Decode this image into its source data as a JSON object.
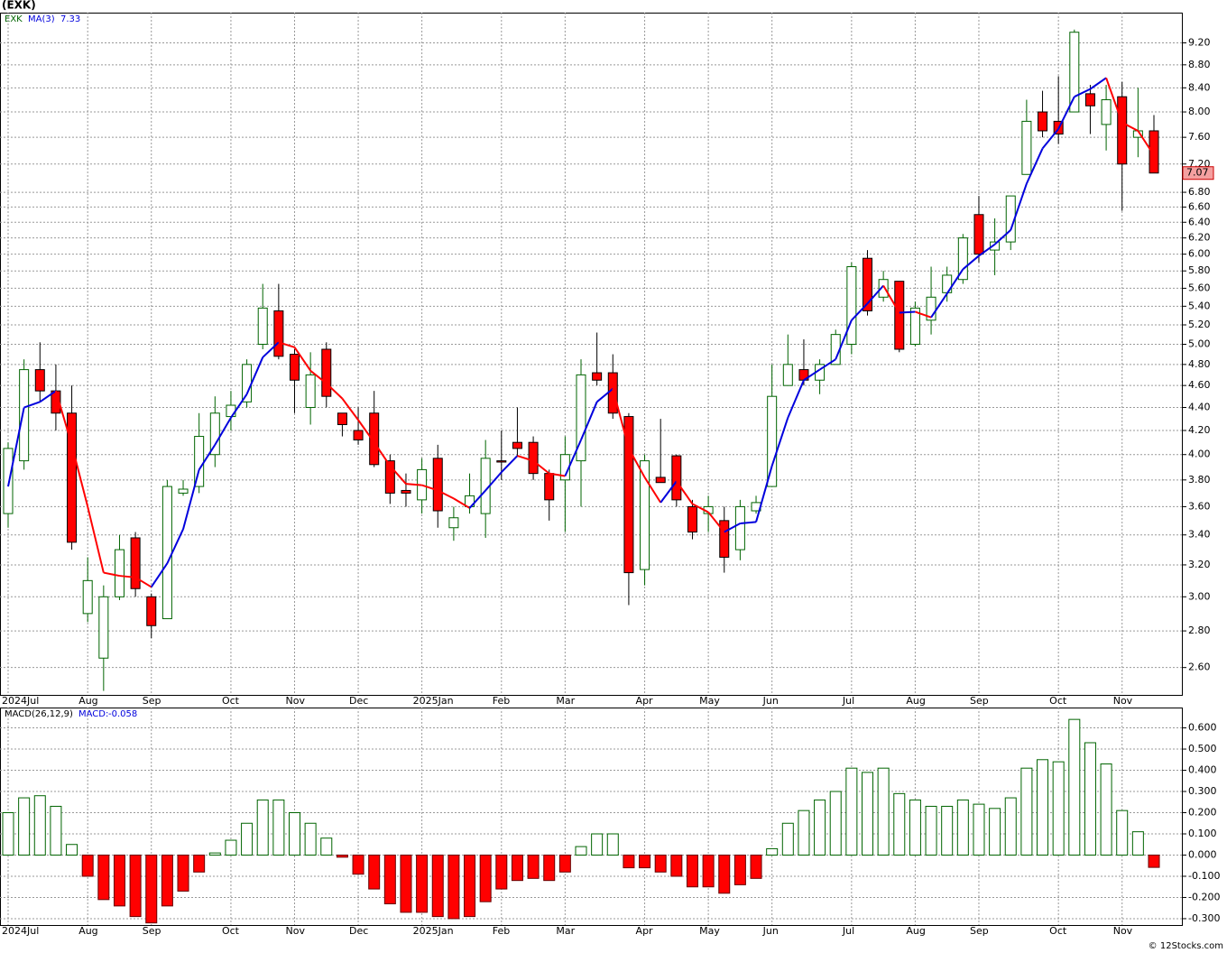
{
  "chart_data": [
    {
      "type": "candlestick",
      "title": "(EXK)",
      "legend_symbol": "EXK",
      "log_scale": true,
      "grid": true,
      "up_color": "#006400",
      "down_color": "#ff0000",
      "categories": [
        "2024Jul",
        null,
        null,
        null,
        null,
        "Aug",
        null,
        null,
        null,
        "Sep",
        null,
        null,
        null,
        null,
        "Oct",
        null,
        null,
        null,
        "Nov",
        null,
        null,
        null,
        "Dec",
        null,
        null,
        null,
        "2025Jan",
        null,
        null,
        null,
        null,
        "Feb",
        null,
        null,
        null,
        "Mar",
        null,
        null,
        null,
        null,
        "Apr",
        null,
        null,
        null,
        "May",
        null,
        null,
        null,
        "Jun",
        null,
        null,
        null,
        null,
        "Jul",
        null,
        null,
        null,
        "Aug",
        null,
        null,
        null,
        "Sep",
        null,
        null,
        null,
        null,
        "Oct",
        null,
        null,
        null,
        "Nov",
        null,
        null
      ],
      "open": [
        3.55,
        3.95,
        4.75,
        4.55,
        4.35,
        2.9,
        2.65,
        3.0,
        3.38,
        3.0,
        2.87,
        3.7,
        3.75,
        4.0,
        4.32,
        4.45,
        5.0,
        5.35,
        4.9,
        4.4,
        4.95,
        4.35,
        4.2,
        4.35,
        3.95,
        3.72,
        3.65,
        3.97,
        3.45,
        3.6,
        3.55,
        3.95,
        4.1,
        4.1,
        3.85,
        3.8,
        3.95,
        4.72,
        4.72,
        4.32,
        3.17,
        3.82,
        3.99,
        3.6,
        3.55,
        3.5,
        3.3,
        3.57,
        3.75,
        4.6,
        4.75,
        4.65,
        4.8,
        5.0,
        5.95,
        5.5,
        5.68,
        5.0,
        5.25,
        5.55,
        5.7,
        6.5,
        6.05,
        6.15,
        7.05,
        8.0,
        7.85,
        8.0,
        8.3,
        7.8,
        8.25,
        7.6,
        7.7
      ],
      "high": [
        4.1,
        4.85,
        5.02,
        4.8,
        4.6,
        3.25,
        3.07,
        3.4,
        3.42,
        3.02,
        3.8,
        3.8,
        4.35,
        4.5,
        4.55,
        4.85,
        5.65,
        5.65,
        4.95,
        4.92,
        5.02,
        4.35,
        4.4,
        4.55,
        4.0,
        3.85,
        3.97,
        4.08,
        3.6,
        3.85,
        4.12,
        4.2,
        4.4,
        4.15,
        3.88,
        4.15,
        4.85,
        5.12,
        4.9,
        4.35,
        4.0,
        4.3,
        4.0,
        3.65,
        3.68,
        3.6,
        3.65,
        3.68,
        4.8,
        5.1,
        5.05,
        4.85,
        5.15,
        5.9,
        6.05,
        5.8,
        5.68,
        5.45,
        5.85,
        5.85,
        6.25,
        6.75,
        6.45,
        6.75,
        8.2,
        8.35,
        8.6,
        9.45,
        8.45,
        8.45,
        8.5,
        8.4,
        7.95
      ],
      "low": [
        3.45,
        3.88,
        4.45,
        4.2,
        3.3,
        2.85,
        2.48,
        2.98,
        3.0,
        2.76,
        2.87,
        3.68,
        3.7,
        3.9,
        4.2,
        4.4,
        4.95,
        4.85,
        4.35,
        4.25,
        4.4,
        4.15,
        4.08,
        3.9,
        3.62,
        3.6,
        3.55,
        3.45,
        3.36,
        3.55,
        3.38,
        3.8,
        3.98,
        3.8,
        3.5,
        3.42,
        3.6,
        4.6,
        4.3,
        2.95,
        3.07,
        3.78,
        3.6,
        3.37,
        3.42,
        3.15,
        3.23,
        3.55,
        3.75,
        4.6,
        4.6,
        4.52,
        4.8,
        4.9,
        5.3,
        5.45,
        4.92,
        4.98,
        5.1,
        5.45,
        5.65,
        5.9,
        5.75,
        6.05,
        7.05,
        7.6,
        7.5,
        8.0,
        7.65,
        7.4,
        6.55,
        7.3,
        7.07
      ],
      "close": [
        4.05,
        4.75,
        4.55,
        4.35,
        3.35,
        3.1,
        3.0,
        3.3,
        3.05,
        2.83,
        3.75,
        3.73,
        4.15,
        4.35,
        4.42,
        4.8,
        5.38,
        4.88,
        4.65,
        4.7,
        4.5,
        4.25,
        4.12,
        3.92,
        3.7,
        3.7,
        3.88,
        3.57,
        3.52,
        3.68,
        3.97,
        3.94,
        4.05,
        3.85,
        3.65,
        4.0,
        4.7,
        4.65,
        4.35,
        3.15,
        3.95,
        3.78,
        3.65,
        3.42,
        3.6,
        3.25,
        3.6,
        3.63,
        4.5,
        4.8,
        4.65,
        4.8,
        5.1,
        5.85,
        5.35,
        5.7,
        4.95,
        5.38,
        5.5,
        5.75,
        6.2,
        6.0,
        6.15,
        6.75,
        7.85,
        7.7,
        7.65,
        9.4,
        8.1,
        8.2,
        7.2,
        7.7,
        7.07
      ],
      "series": [
        {
          "name": "MA(3)",
          "color": "#0000dd",
          "down_color": "#ff0000",
          "values": [
            3.75,
            4.4,
            4.45,
            4.55,
            4.08,
            3.6,
            3.15,
            3.13,
            3.12,
            3.06,
            3.21,
            3.44,
            3.88,
            4.08,
            4.31,
            4.52,
            4.87,
            5.02,
            4.97,
            4.74,
            4.62,
            4.48,
            4.29,
            4.1,
            3.91,
            3.77,
            3.76,
            3.72,
            3.66,
            3.59,
            3.72,
            3.86,
            3.99,
            3.95,
            3.85,
            3.83,
            4.12,
            4.45,
            4.57,
            4.05,
            3.82,
            3.63,
            3.79,
            3.62,
            3.56,
            3.42,
            3.48,
            3.49,
            3.91,
            4.31,
            4.65,
            4.75,
            4.85,
            5.25,
            5.43,
            5.63,
            5.33,
            5.34,
            5.28,
            5.54,
            5.82,
            5.98,
            6.12,
            6.3,
            6.92,
            7.43,
            7.73,
            8.25,
            8.38,
            8.57,
            7.83,
            7.7,
            7.33
          ]
        }
      ],
      "ylim": [
        2.46,
        9.78
      ],
      "yticks": [
        {
          "value": 2.6,
          "label": "2.60"
        },
        {
          "value": 2.8,
          "label": "2.80"
        },
        {
          "value": 3.0,
          "label": "3.00"
        },
        {
          "value": 3.2,
          "label": "3.20"
        },
        {
          "value": 3.4,
          "label": "3.40"
        },
        {
          "value": 3.6,
          "label": "3.60"
        },
        {
          "value": 3.8,
          "label": "3.80"
        },
        {
          "value": 4.0,
          "label": "4.00"
        },
        {
          "value": 4.2,
          "label": "4.20"
        },
        {
          "value": 4.4,
          "label": "4.40"
        },
        {
          "value": 4.6,
          "label": "4.60"
        },
        {
          "value": 4.8,
          "label": "4.80"
        },
        {
          "value": 5.0,
          "label": "5.00"
        },
        {
          "value": 5.2,
          "label": "5.20"
        },
        {
          "value": 5.4,
          "label": "5.40"
        },
        {
          "value": 5.6,
          "label": "5.60"
        },
        {
          "value": 5.8,
          "label": "5.80"
        },
        {
          "value": 6.0,
          "label": "6.00"
        },
        {
          "value": 6.2,
          "label": "6.20"
        },
        {
          "value": 6.4,
          "label": "6.40"
        },
        {
          "value": 6.6,
          "label": "6.60"
        },
        {
          "value": 6.8,
          "label": "6.80"
        },
        {
          "value": 7.2,
          "label": "7.20"
        },
        {
          "value": 7.6,
          "label": "7.60"
        },
        {
          "value": 8.0,
          "label": "8.00"
        },
        {
          "value": 8.4,
          "label": "8.40"
        },
        {
          "value": 8.8,
          "label": "8.80"
        },
        {
          "value": 9.2,
          "label": "9.20"
        }
      ]
    },
    {
      "type": "bar",
      "title": "MACD(26,12,9)",
      "legend": "MACD:",
      "grid": true,
      "up_color": "#006400",
      "down_color": "#ff0000",
      "categories": [
        "2024Jul",
        null,
        null,
        null,
        null,
        "Aug",
        null,
        null,
        null,
        "Sep",
        null,
        null,
        null,
        null,
        "Oct",
        null,
        null,
        null,
        "Nov",
        null,
        null,
        null,
        "Dec",
        null,
        null,
        null,
        "2025Jan",
        null,
        null,
        null,
        null,
        "Feb",
        null,
        null,
        null,
        "Mar",
        null,
        null,
        null,
        null,
        "Apr",
        null,
        null,
        null,
        "May",
        null,
        null,
        null,
        "Jun",
        null,
        null,
        null,
        null,
        "Jul",
        null,
        null,
        null,
        "Aug",
        null,
        null,
        null,
        "Sep",
        null,
        null,
        null,
        null,
        "Oct",
        null,
        null,
        null,
        "Nov",
        null,
        null
      ],
      "values": [
        0.2,
        0.27,
        0.28,
        0.23,
        0.05,
        -0.1,
        -0.21,
        -0.24,
        -0.29,
        -0.32,
        -0.24,
        -0.17,
        -0.08,
        0.01,
        0.07,
        0.15,
        0.26,
        0.26,
        0.2,
        0.15,
        0.08,
        -0.01,
        -0.09,
        -0.16,
        -0.23,
        -0.27,
        -0.27,
        -0.29,
        -0.3,
        -0.29,
        -0.22,
        -0.16,
        -0.12,
        -0.11,
        -0.12,
        -0.08,
        0.04,
        0.1,
        0.1,
        -0.06,
        -0.06,
        -0.08,
        -0.1,
        -0.15,
        -0.15,
        -0.18,
        -0.14,
        -0.11,
        0.03,
        0.15,
        0.21,
        0.26,
        0.3,
        0.41,
        0.39,
        0.41,
        0.29,
        0.26,
        0.23,
        0.23,
        0.26,
        0.24,
        0.22,
        0.27,
        0.41,
        0.45,
        0.44,
        0.64,
        0.53,
        0.43,
        0.21,
        0.11,
        -0.058
      ],
      "ylim": [
        -0.33,
        0.696
      ],
      "yticks": [
        {
          "value": -0.3,
          "label": "-0.300"
        },
        {
          "value": -0.2,
          "label": "-0.200"
        },
        {
          "value": -0.1,
          "label": "-0.100"
        },
        {
          "value": 0,
          "label": "0.000"
        },
        {
          "value": 0.1,
          "label": "0.100"
        },
        {
          "value": 0.2,
          "label": "0.200"
        },
        {
          "value": 0.3,
          "label": "0.300"
        },
        {
          "value": 0.4,
          "label": "0.400"
        },
        {
          "value": 0.5,
          "label": "0.500"
        },
        {
          "value": 0.6,
          "label": "0.600"
        }
      ]
    }
  ],
  "footer": "© 12Stocks.com"
}
